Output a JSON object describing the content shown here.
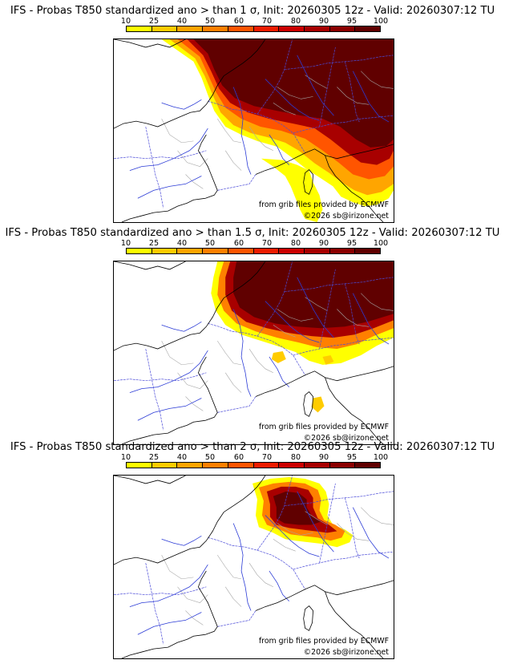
{
  "colorbar": {
    "ticks": [
      "10",
      "25",
      "40",
      "50",
      "60",
      "70",
      "80",
      "90",
      "95",
      "100"
    ],
    "colors": [
      "#ffff00",
      "#ffcc00",
      "#ffa500",
      "#ff8000",
      "#ff5500",
      "#ee1c00",
      "#cc0000",
      "#a80000",
      "#8b0000",
      "#600000"
    ]
  },
  "panels": [
    {
      "title": "IFS - Probas T850  standardized ano > than 1 σ, Init: 20260305 12z - Valid: 20260307:12 TU",
      "source": "from grib files provided by ECMWF",
      "copyright": "©2026 sb@irizone.net"
    },
    {
      "title": "IFS - Probas T850  standardized ano > than 1.5 σ, Init: 20260305 12z - Valid: 20260307:12 TU",
      "source": "from grib files provided by ECMWF",
      "copyright": "©2026 sb@irizone.net"
    },
    {
      "title": "IFS - Probas T850  standardized ano > than 2 σ, Init: 20260305 12z - Valid: 20260307:12 TU",
      "source": "from grib files provided by ECMWF",
      "copyright": "©2026 sb@irizone.net"
    }
  ]
}
